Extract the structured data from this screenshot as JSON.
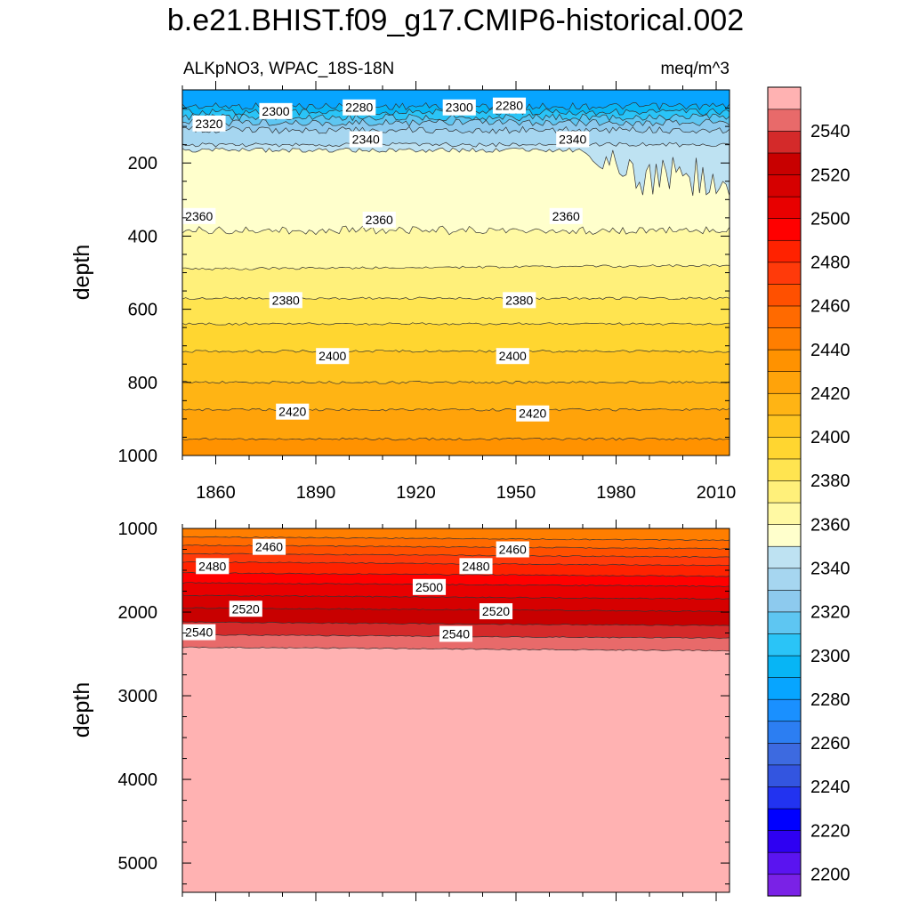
{
  "title": "b.e21.BHIST.f09_g17.CMIP6-historical.002",
  "variable_label": "ALKpNO3, WPAC_18S-18N",
  "units_label": "meq/m^3",
  "chart_data": [
    {
      "type": "heatmap",
      "panel": "upper",
      "title": "",
      "xlabel": "",
      "ylabel": "depth",
      "xlim": [
        1850,
        2014
      ],
      "ylim": [
        1000,
        0
      ],
      "x_ticks": [
        1860,
        1890,
        1920,
        1950,
        1980,
        2010
      ],
      "y_ticks": [
        200,
        400,
        600,
        800,
        1000
      ],
      "y_reversed": true,
      "contour_interval": 10,
      "isolines": [
        {
          "level": 2290,
          "depth": 45
        },
        {
          "level": 2300,
          "depth": 60
        },
        {
          "level": 2310,
          "depth": 75
        },
        {
          "level": 2320,
          "depth": 90
        },
        {
          "level": 2330,
          "depth": 110
        },
        {
          "level": 2340,
          "depth": 150
        },
        {
          "level": 2350,
          "depth": 165
        },
        {
          "level": 2360,
          "depth": 385
        },
        {
          "level": 2370,
          "depth": 485
        },
        {
          "level": 2380,
          "depth": 570
        },
        {
          "level": 2390,
          "depth": 640
        },
        {
          "level": 2400,
          "depth": 715
        },
        {
          "level": 2410,
          "depth": 800
        },
        {
          "level": 2420,
          "depth": 875
        },
        {
          "level": 2430,
          "depth": 955
        }
      ],
      "contour_labels": [
        {
          "text": "2320",
          "x": 1858,
          "depth": 92
        },
        {
          "text": "2300",
          "x": 1878,
          "depth": 58
        },
        {
          "text": "2280",
          "x": 1903,
          "depth": 48
        },
        {
          "text": "2300",
          "x": 1933,
          "depth": 48
        },
        {
          "text": "2280",
          "x": 1948,
          "depth": 43
        },
        {
          "text": "2340",
          "x": 1905,
          "depth": 135
        },
        {
          "text": "2340",
          "x": 1967,
          "depth": 135
        },
        {
          "text": "2360",
          "x": 1855,
          "depth": 345
        },
        {
          "text": "2360",
          "x": 1909,
          "depth": 355
        },
        {
          "text": "2360",
          "x": 1965,
          "depth": 345
        },
        {
          "text": "2380",
          "x": 1881,
          "depth": 575
        },
        {
          "text": "2380",
          "x": 1951,
          "depth": 575
        },
        {
          "text": "2400",
          "x": 1895,
          "depth": 728
        },
        {
          "text": "2400",
          "x": 1949,
          "depth": 728
        },
        {
          "text": "2420",
          "x": 1883,
          "depth": 880
        },
        {
          "text": "2420",
          "x": 1955,
          "depth": 885
        }
      ]
    },
    {
      "type": "heatmap",
      "panel": "lower",
      "title": "",
      "xlabel": "",
      "ylabel": "depth",
      "xlim": [
        1850,
        2014
      ],
      "ylim": [
        5350,
        1000
      ],
      "y_ticks": [
        1000,
        2000,
        3000,
        4000,
        5000
      ],
      "y_reversed": true,
      "contour_interval": 10,
      "isolines": [
        {
          "level": 2450,
          "depth": 1100
        },
        {
          "level": 2460,
          "depth": 1200
        },
        {
          "level": 2470,
          "depth": 1300
        },
        {
          "level": 2480,
          "depth": 1400
        },
        {
          "level": 2490,
          "depth": 1530
        },
        {
          "level": 2500,
          "depth": 1650
        },
        {
          "level": 2510,
          "depth": 1800
        },
        {
          "level": 2520,
          "depth": 1950
        },
        {
          "level": 2530,
          "depth": 2120
        },
        {
          "level": 2540,
          "depth": 2270
        },
        {
          "level": 2550,
          "depth": 2420
        }
      ],
      "contour_labels": [
        {
          "text": "2460",
          "x": 1876,
          "depth": 1220
        },
        {
          "text": "2480",
          "x": 1859,
          "depth": 1450
        },
        {
          "text": "2500",
          "x": 1924,
          "depth": 1700
        },
        {
          "text": "2520",
          "x": 1869,
          "depth": 1960
        },
        {
          "text": "2540",
          "x": 1855,
          "depth": 2240
        },
        {
          "text": "2460",
          "x": 1949,
          "depth": 1250
        },
        {
          "text": "2480",
          "x": 1938,
          "depth": 1450
        },
        {
          "text": "2520",
          "x": 1944,
          "depth": 1990
        },
        {
          "text": "2540",
          "x": 1932,
          "depth": 2260
        }
      ]
    }
  ],
  "colorbar": {
    "labels": [
      "2200",
      "2220",
      "2240",
      "2260",
      "2280",
      "2300",
      "2320",
      "2340",
      "2360",
      "2380",
      "2400",
      "2420",
      "2440",
      "2460",
      "2480",
      "2500",
      "2520",
      "2540"
    ],
    "levels_min": 2200,
    "levels_step": 10,
    "colors": [
      "#7a22e6",
      "#5a14f0",
      "#2e00f2",
      "#0000ff",
      "#2233f0",
      "#3355e0",
      "#3d6ae0",
      "#2c7ef2",
      "#1a90ff",
      "#07a5ff",
      "#07b5f5",
      "#2ac4f7",
      "#5ec6f2",
      "#8dcaee",
      "#a6d6f0",
      "#bee2f2",
      "#ffffcc",
      "#fff9a3",
      "#fff07a",
      "#ffe450",
      "#ffd630",
      "#ffc520",
      "#ffb414",
      "#ffa30a",
      "#ff9200",
      "#ff7e00",
      "#ff6a00",
      "#ff5000",
      "#ff3a0a",
      "#ff2200",
      "#ff0000",
      "#e80000",
      "#d60000",
      "#c80000",
      "#d42a2a",
      "#e86a6a",
      "#ffb2b2"
    ]
  }
}
